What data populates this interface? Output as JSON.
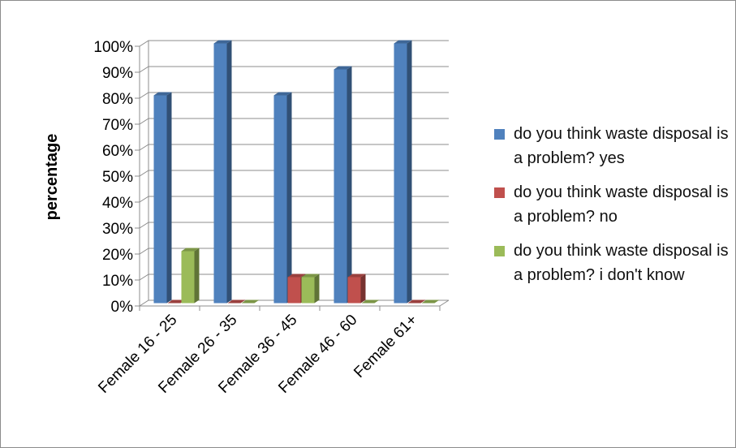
{
  "chart_data": {
    "type": "bar",
    "style": "3d-clustered-column",
    "title": "",
    "xlabel": "",
    "ylabel": "percentage",
    "categories": [
      "Female 16 - 25",
      "Female 26 - 35",
      "Female 36 - 45",
      "Female 46 - 60",
      "Female 61+"
    ],
    "series": [
      {
        "name": "do you think waste disposal is a problem? yes",
        "color": "#4F81BD",
        "values": [
          80,
          100,
          80,
          90,
          100
        ]
      },
      {
        "name": "do you think waste disposal is a problem? no",
        "color": "#C0504D",
        "values": [
          0,
          0,
          10,
          10,
          0
        ]
      },
      {
        "name": "do you think waste disposal is a problem? i don't know",
        "color": "#9BBB59",
        "values": [
          20,
          0,
          10,
          0,
          0
        ]
      }
    ],
    "ylim": [
      0,
      100
    ],
    "yticks": [
      "0%",
      "10%",
      "20%",
      "30%",
      "40%",
      "50%",
      "60%",
      "70%",
      "80%",
      "90%",
      "100%"
    ],
    "grid": true,
    "legend": "right"
  }
}
